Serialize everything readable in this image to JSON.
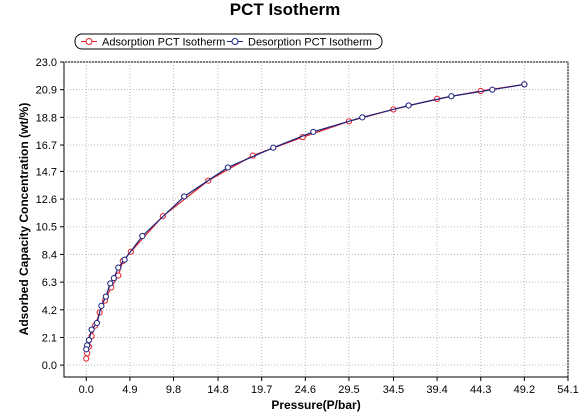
{
  "chart_data": {
    "type": "line",
    "title": "PCT Isotherm",
    "xlabel": "Pressure(P/bar)",
    "ylabel": "Adsorbed Capacity Concentration (wt/%)",
    "xlim": [
      -2.5,
      54.1
    ],
    "ylim": [
      -0.9,
      23.0
    ],
    "xticks": [
      "0.0",
      "4.9",
      "9.8",
      "14.8",
      "19.7",
      "24.6",
      "29.5",
      "34.5",
      "39.4",
      "44.3",
      "49.2",
      "54.1"
    ],
    "xtick_values": [
      0.0,
      4.9,
      9.8,
      14.8,
      19.7,
      24.6,
      29.5,
      34.5,
      39.4,
      44.3,
      49.2,
      54.1
    ],
    "yticks": [
      "0.0",
      "2.1",
      "4.2",
      "6.3",
      "8.4",
      "10.5",
      "12.6",
      "14.7",
      "16.7",
      "18.8",
      "20.9",
      "23.0"
    ],
    "ytick_values": [
      0.0,
      2.1,
      4.2,
      6.3,
      8.4,
      10.5,
      12.6,
      14.7,
      16.7,
      18.8,
      20.9,
      23.0
    ],
    "grid": true,
    "legend_position": "top-left",
    "series": [
      {
        "name": "Adsorption PCT Isotherm",
        "color": "#e0202a",
        "x": [
          0.0,
          0.1,
          0.3,
          0.6,
          1.0,
          1.5,
          2.1,
          2.8,
          3.6,
          4.1,
          5.0,
          8.6,
          13.7,
          18.7,
          24.3,
          29.5,
          34.5,
          39.4,
          44.3,
          49.2
        ],
        "y": [
          0.5,
          0.9,
          1.4,
          2.2,
          3.0,
          4.0,
          4.9,
          5.9,
          6.8,
          7.9,
          8.6,
          11.3,
          14.0,
          15.9,
          17.3,
          18.5,
          19.4,
          20.2,
          20.8,
          21.3
        ]
      },
      {
        "name": "Desorption PCT Isotherm",
        "color": "#1a237e",
        "x": [
          49.2,
          45.6,
          41.0,
          36.2,
          31.0,
          25.5,
          21.0,
          15.9,
          11.0,
          6.3,
          4.3,
          3.6,
          3.1,
          2.7,
          2.2,
          1.7,
          1.2,
          0.6,
          0.3,
          0.1,
          0.0
        ],
        "y": [
          21.3,
          20.9,
          20.4,
          19.7,
          18.8,
          17.7,
          16.5,
          15.0,
          12.8,
          9.8,
          8.0,
          7.4,
          6.6,
          6.2,
          5.2,
          4.5,
          3.2,
          2.7,
          1.9,
          1.5,
          1.2
        ]
      }
    ]
  }
}
